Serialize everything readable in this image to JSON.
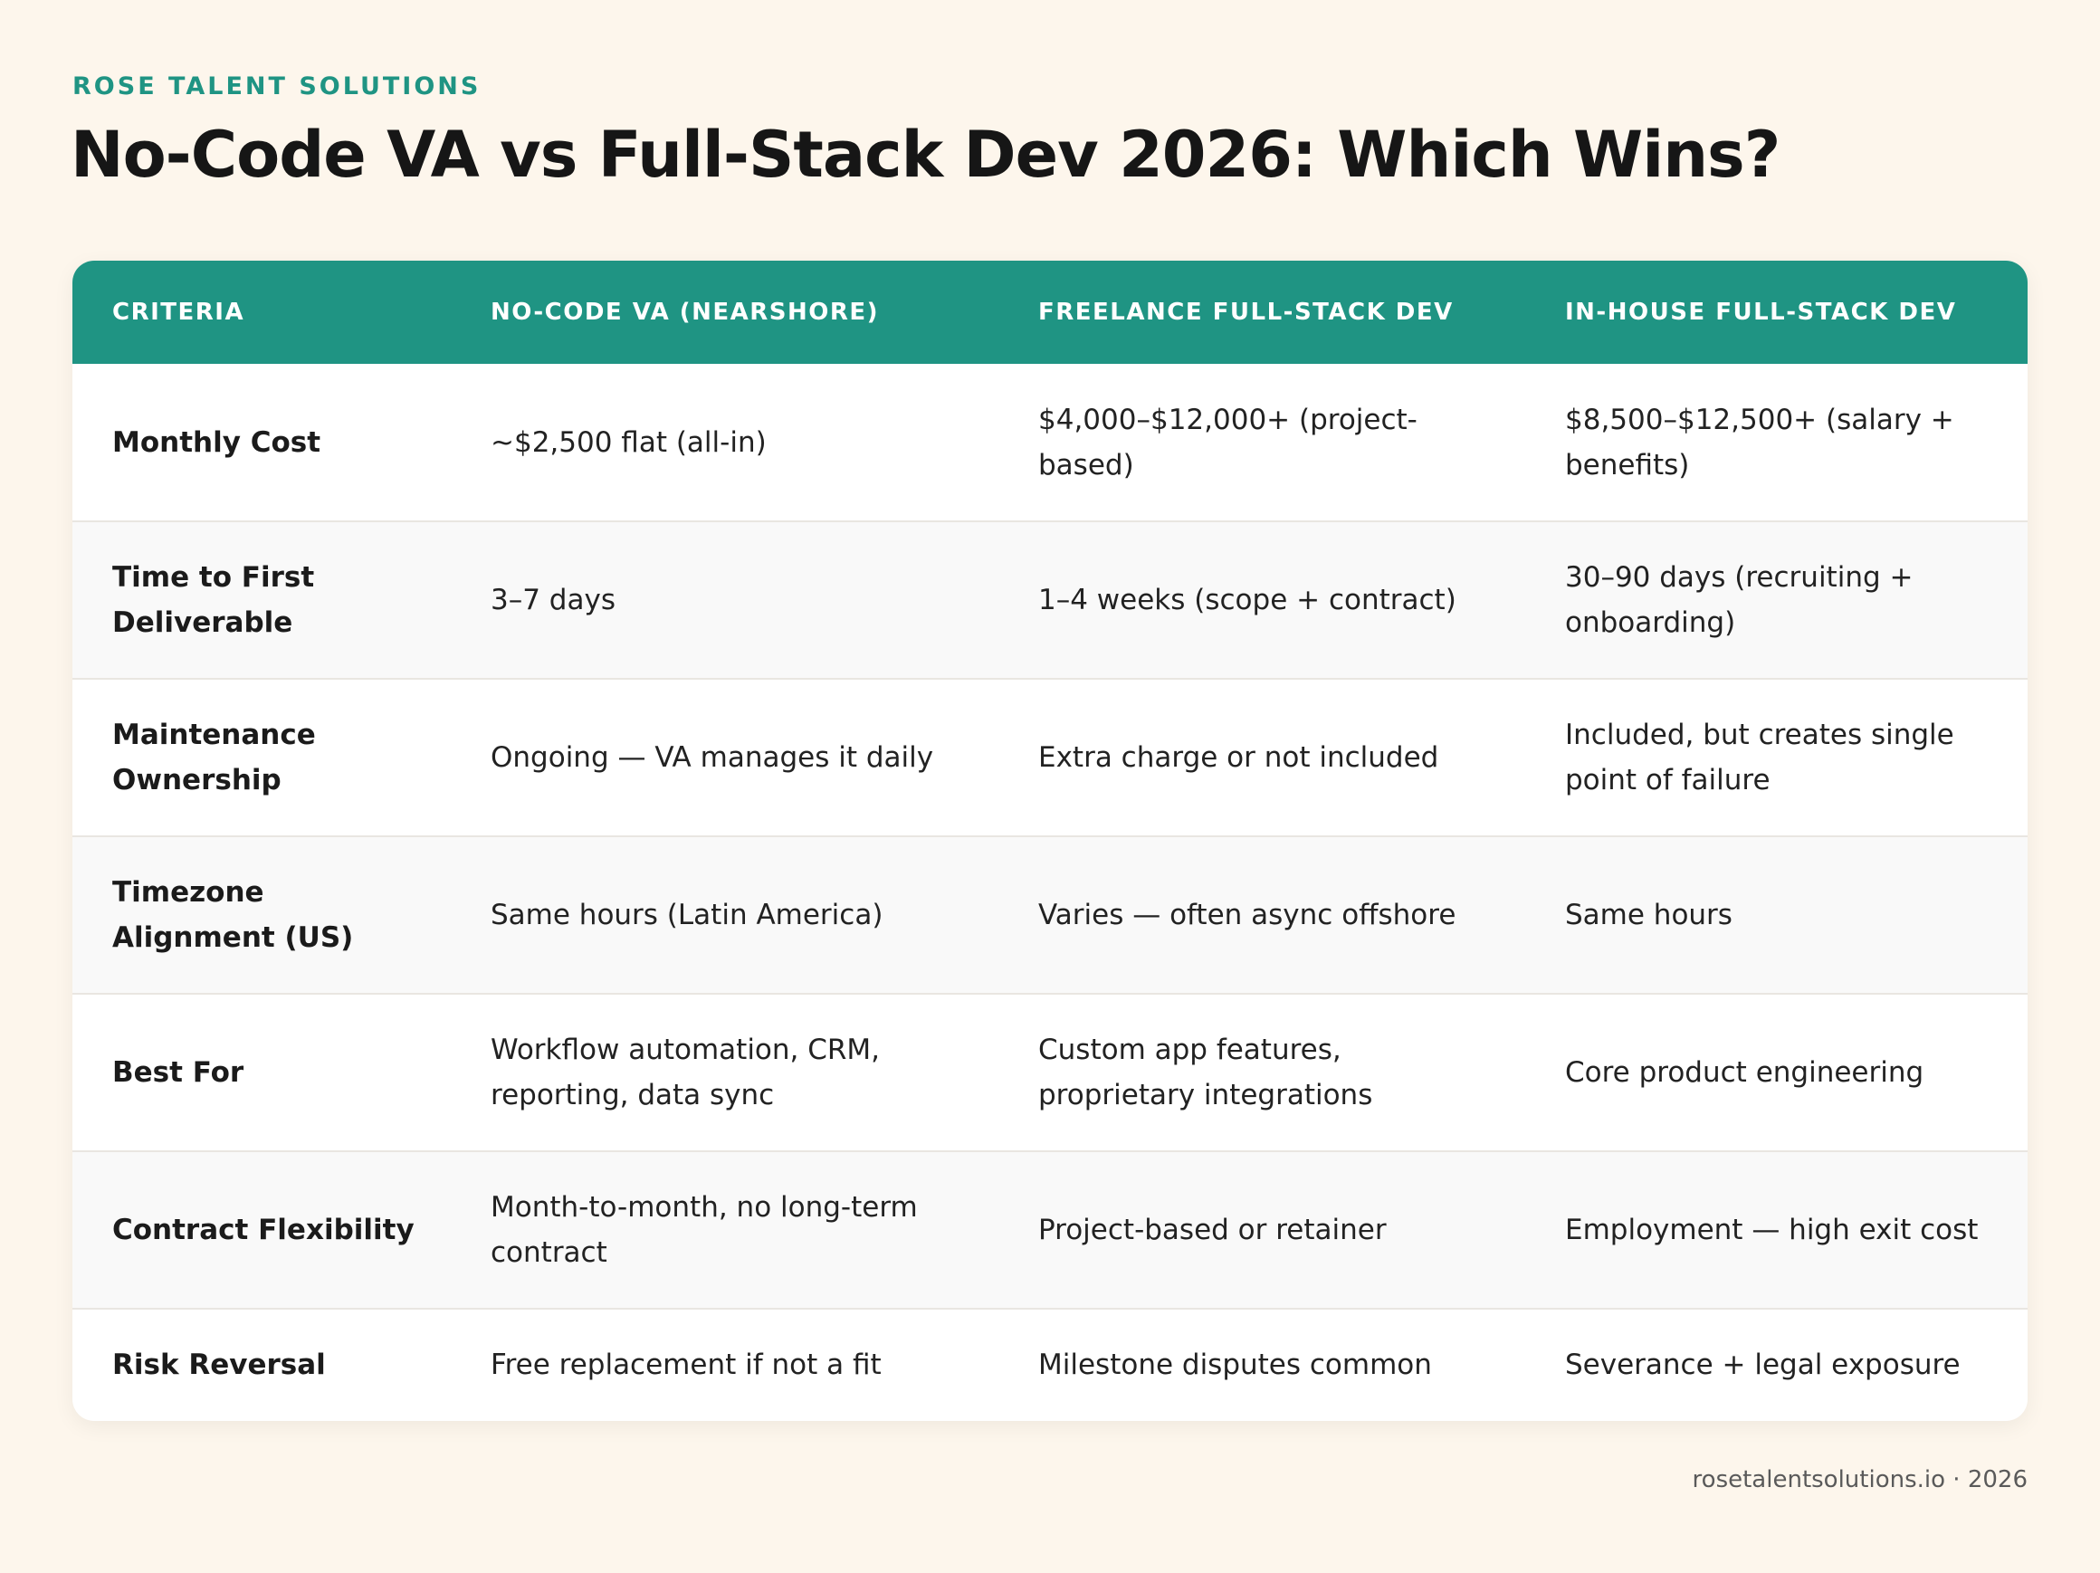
{
  "brand": "ROSE TALENT SOLUTIONS",
  "title": "No-Code VA vs Full-Stack Dev 2026: Which Wins?",
  "table": {
    "headers": [
      "CRITERIA",
      "NO-CODE VA (NEARSHORE)",
      "FREELANCE FULL-STACK DEV",
      "IN-HOUSE FULL-STACK DEV"
    ],
    "rows": [
      [
        "Monthly Cost",
        "~$2,500 flat (all-in)",
        "$4,000–$12,000+ (project-based)",
        "$8,500–$12,500+ (salary + benefits)"
      ],
      [
        "Time to First Deliverable",
        "3–7 days",
        "1–4 weeks (scope + contract)",
        "30–90 days (recruiting + onboarding)"
      ],
      [
        "Maintenance Ownership",
        "Ongoing — VA manages it daily",
        "Extra charge or not included",
        "Included, but creates single point of failure"
      ],
      [
        "Timezone Alignment (US)",
        "Same hours (Latin America)",
        "Varies — often async offshore",
        "Same hours"
      ],
      [
        "Best For",
        "Workflow automation, CRM, reporting, data sync",
        "Custom app features, proprietary integrations",
        "Core product engineering"
      ],
      [
        "Contract Flexibility",
        "Month-to-month, no long-term contract",
        "Project-based or retainer",
        "Employment — high exit cost"
      ],
      [
        "Risk Reversal",
        "Free replacement if not a fit",
        "Milestone disputes common",
        "Severance + legal exposure"
      ]
    ]
  },
  "footer": "rosetalentsolutions.io · 2026",
  "colors": {
    "background": "#fdf6ec",
    "accent": "#1f9483",
    "header_text": "#ffffff"
  }
}
